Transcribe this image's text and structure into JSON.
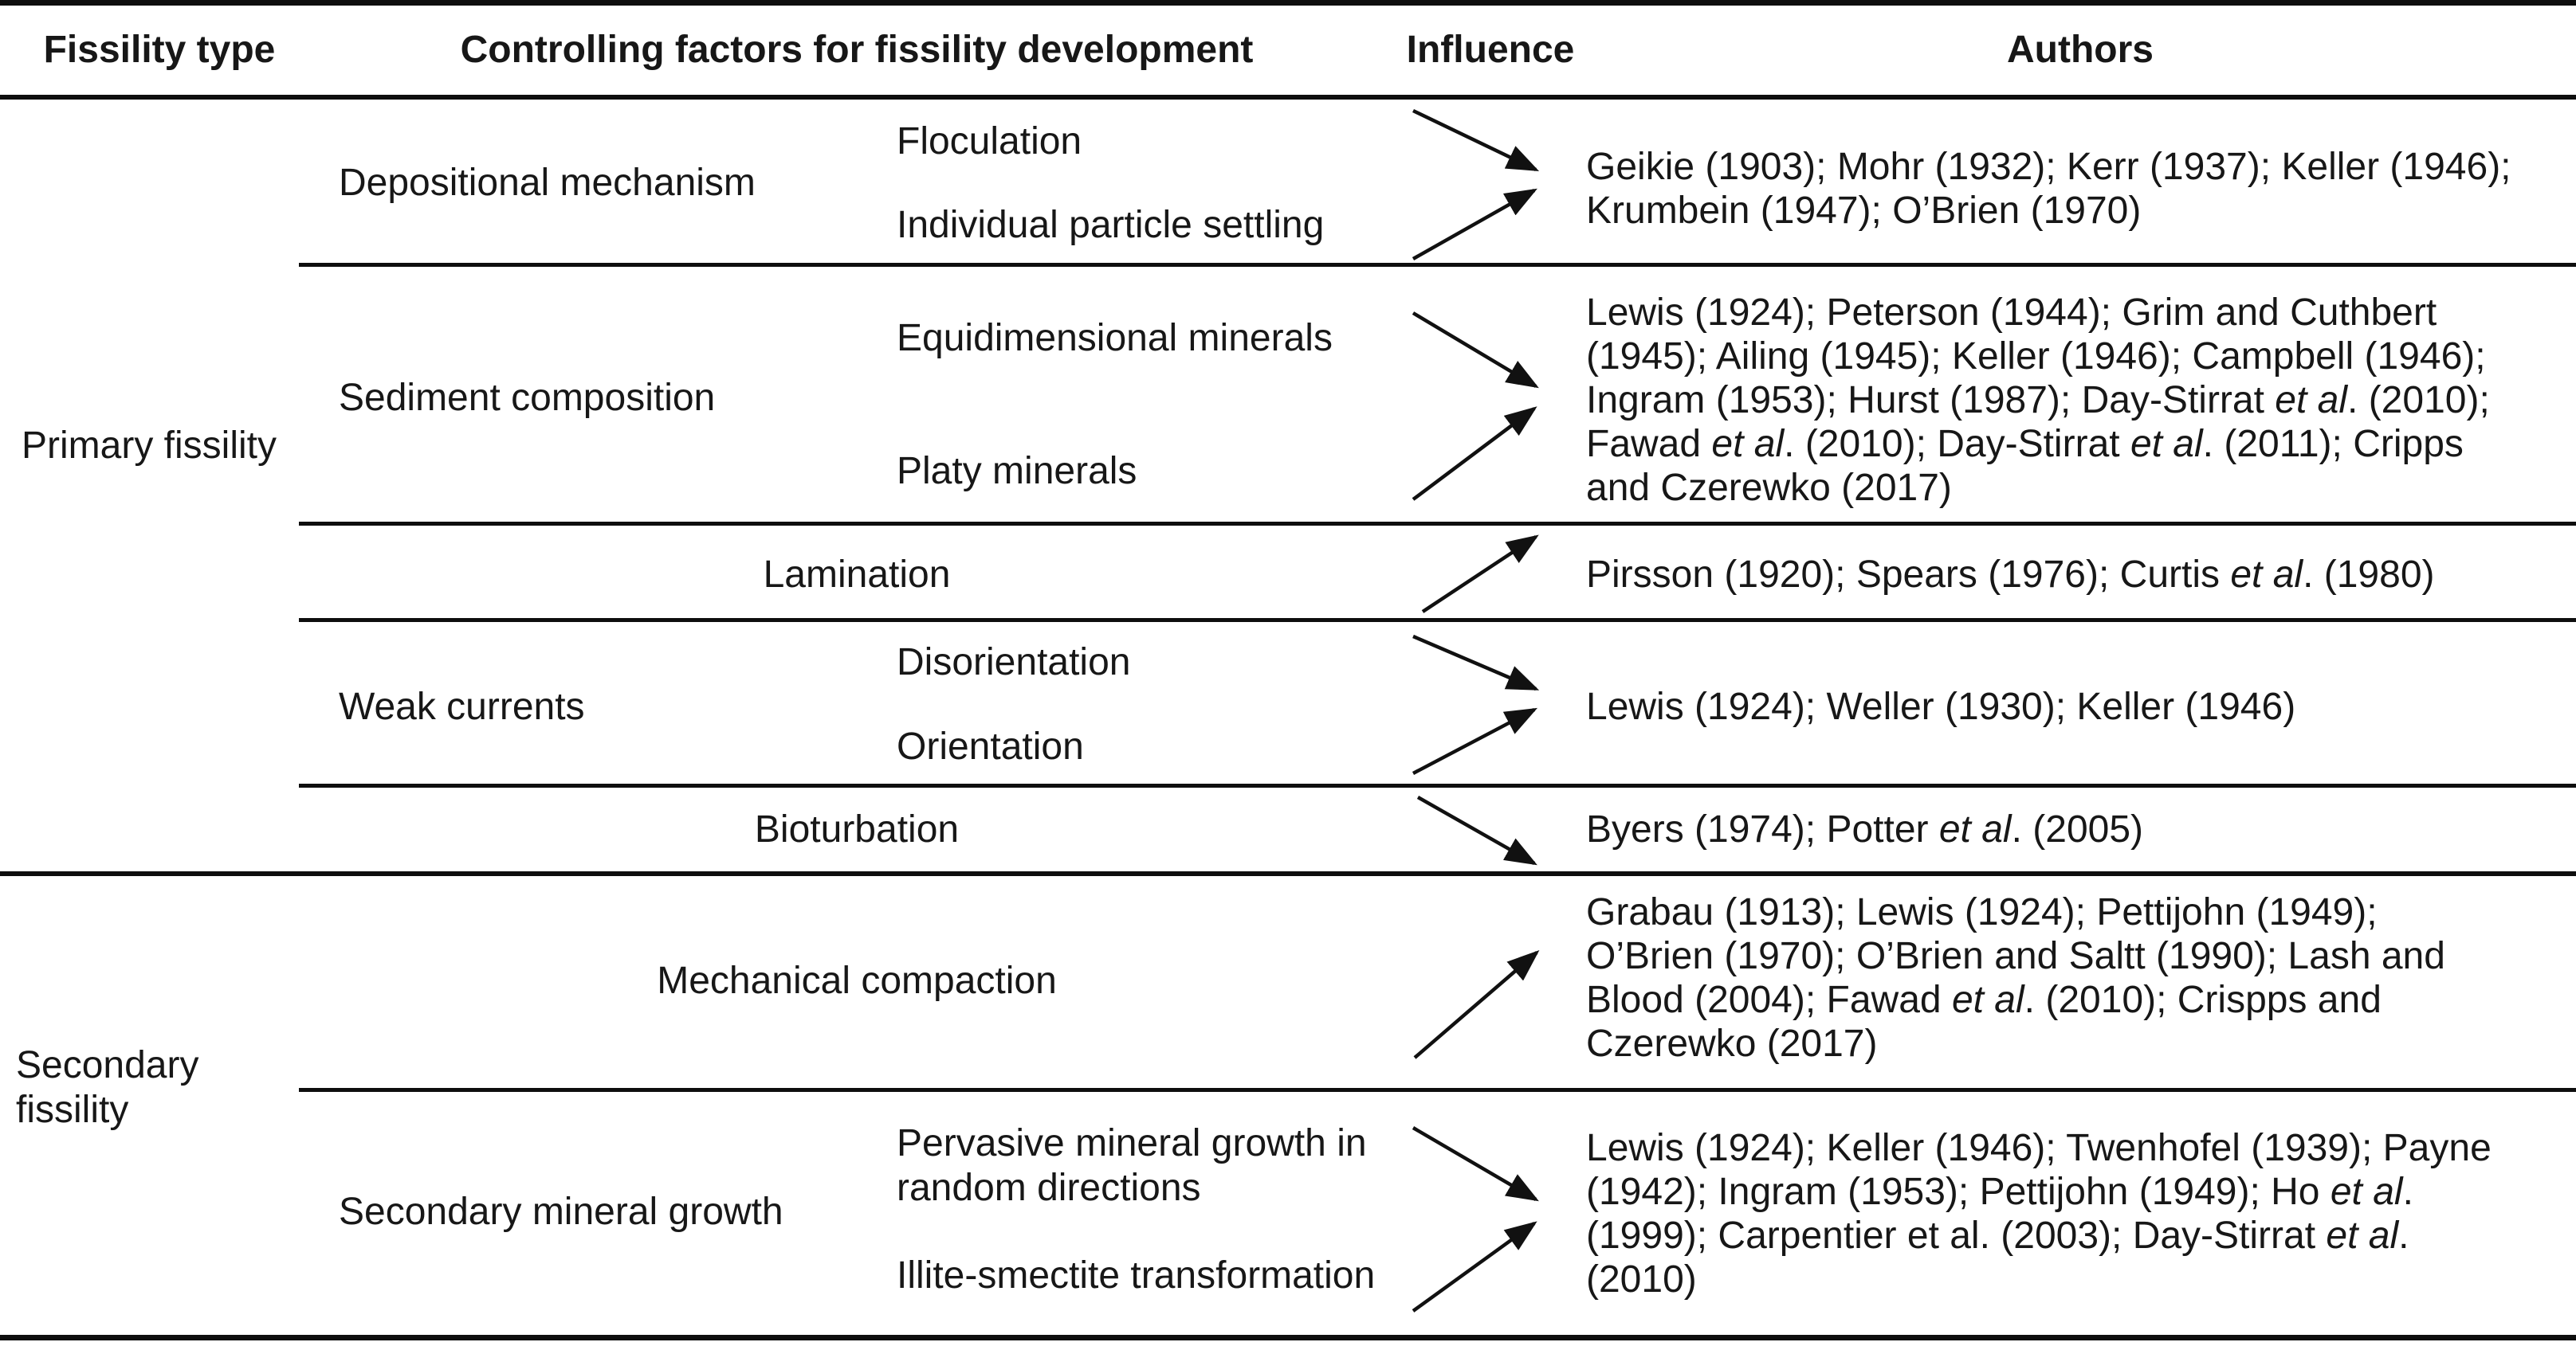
{
  "header": {
    "fissility_type": "Fissility type",
    "controlling_factors": "Controlling factors for fissility development",
    "influence": "Influence",
    "authors": "Authors"
  },
  "fissility_types": {
    "primary": "Primary fissility",
    "secondary": "Secondary\nfissility"
  },
  "rows": [
    {
      "factor": "Depositional mechanism",
      "subfactors": [
        "Floculation",
        "Individual particle settling"
      ],
      "influence": "two arrows converging right",
      "author_lines": [
        "Geikie (1903); Mohr (1932); Kerr (1937); Keller (1946);",
        "Krumbein (1947); O’Brien (1970)"
      ]
    },
    {
      "factor": "Sediment composition",
      "subfactors": [
        "Equidimensional minerals",
        "Platy minerals"
      ],
      "influence": "two arrows converging right",
      "author_lines": [
        "Lewis (1924); Peterson (1944); Grim and Cuthbert",
        "(1945); Ailing (1945); Keller (1946); Campbell (1946);",
        "Ingram (1953); Hurst (1987); Day-Stirrat *et al*. (2010);",
        "Fawad *et al*. (2010); Day-Stirrat *et al*. (2011); Cripps",
        "and Czerewko (2017)"
      ]
    },
    {
      "factor": "Lamination",
      "subfactors": [],
      "influence": "single arrow up-right",
      "author_lines": [
        "Pirsson (1920); Spears (1976); Curtis *et al*. (1980)"
      ]
    },
    {
      "factor": "Weak currents",
      "subfactors": [
        "Disorientation",
        "Orientation"
      ],
      "influence": "two arrows converging right",
      "author_lines": [
        "Lewis (1924); Weller (1930); Keller (1946)"
      ]
    },
    {
      "factor": "Bioturbation",
      "subfactors": [],
      "influence": "single arrow down-right",
      "author_lines": [
        "Byers (1974); Potter *et al*. (2005)"
      ]
    },
    {
      "factor": "Mechanical compaction",
      "subfactors": [],
      "influence": "single arrow up-right",
      "author_lines": [
        "Grabau (1913); Lewis (1924); Pettijohn (1949);",
        "O’Brien (1970); O’Brien and Saltt (1990); Lash and",
        "Blood (2004); Fawad *et al*. (2010); Crispps and",
        "Czerewko (2017)"
      ]
    },
    {
      "factor": "Secondary mineral growth",
      "subfactors": [
        "Pervasive mineral growth in\nrandom directions",
        "Illite-smectite transformation"
      ],
      "influence": "two arrows converging right",
      "author_lines": [
        "Lewis (1924); Keller (1946); Twenhofel (1939); Payne",
        "(1942); Ingram (1953); Pettijohn (1949); Ho *et al*.",
        "(1999); Carpentier et al. (2003); Day-Stirrat *et al*.",
        "(2010)"
      ]
    }
  ],
  "colors": {
    "text": "#171717",
    "rule": "#0e0e0e",
    "background": "#ffffff"
  }
}
